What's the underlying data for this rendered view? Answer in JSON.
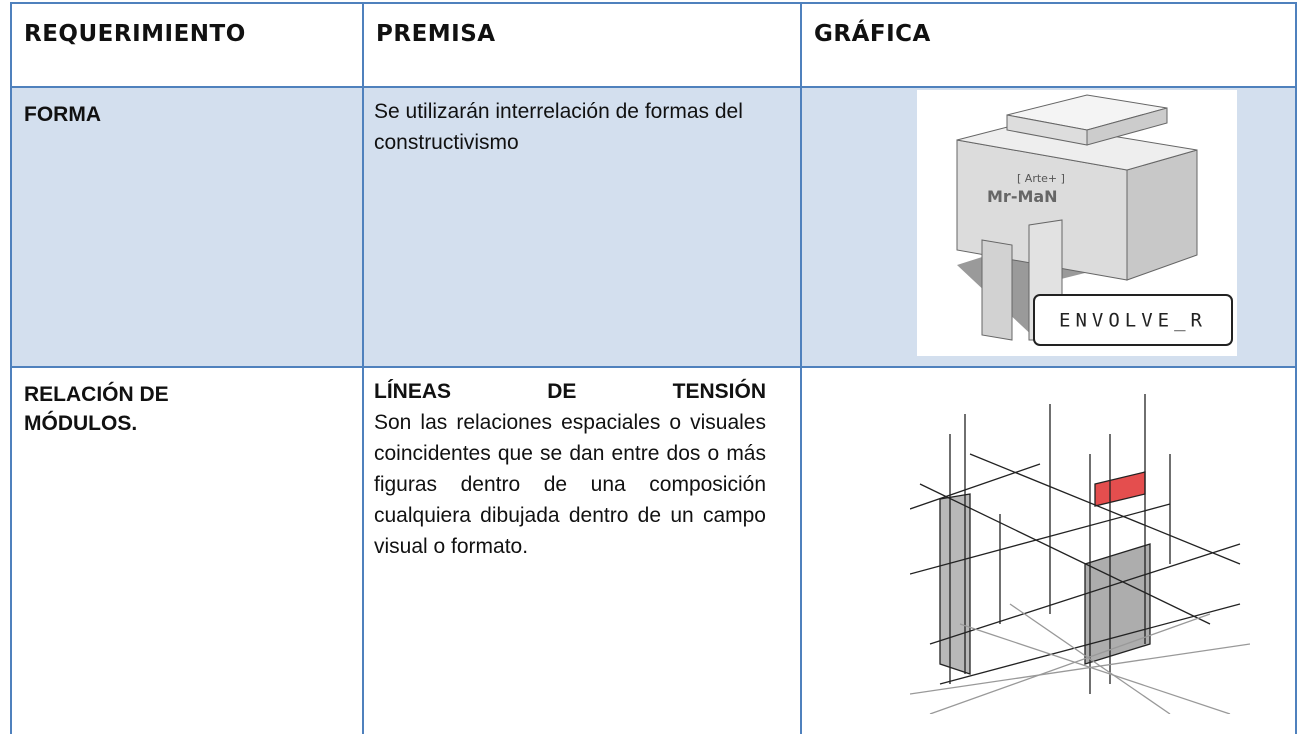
{
  "table": {
    "header": [
      "REQUERIMIENTO",
      "PREMISA",
      "GRÁFICA"
    ],
    "rows": [
      {
        "requirement": "FORMA",
        "premise": "Se utilizarán interrelación de formas del constructivismo",
        "image_caption": "ENVOLVE_R"
      },
      {
        "requirement": "RELACIÓN DE MÓDULOS.",
        "premise_title": "LÍNEAS DE TENSIÓN",
        "premise": "Son las relaciones espaciales o visuales coincidentes que se dan entre dos o más figuras dentro de una composición cualquiera dibujada dentro de un campo visual o formato."
      }
    ]
  }
}
